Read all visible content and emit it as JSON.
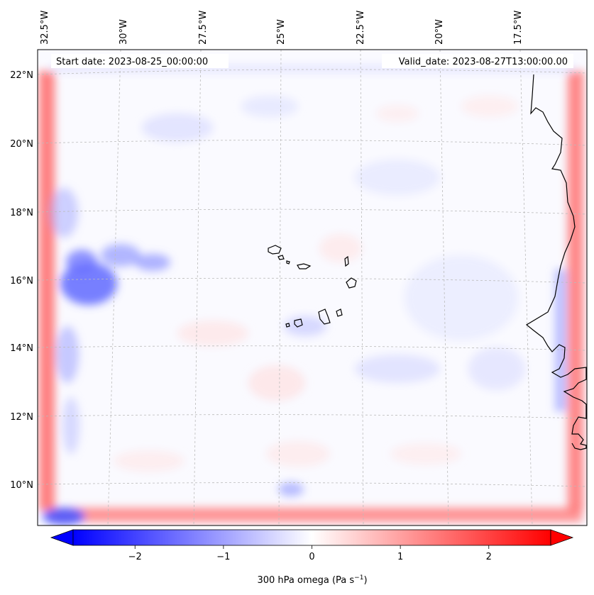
{
  "header": {
    "start_date": "Start date: 2023-08-25_00:00:00",
    "valid_date": "Valid_date: 2023-08-27T13:00:00.00"
  },
  "lon_labels": [
    "32.5°W",
    "30°W",
    "27.5°W",
    "25°W",
    "22.5°W",
    "20°W",
    "17.5°W"
  ],
  "lat_labels": [
    "22°N",
    "20°N",
    "18°N",
    "16°N",
    "14°N",
    "12°N",
    "10°N"
  ],
  "colorbar": {
    "label": "300 hPa omega (Pa s",
    "label_sup": "−1",
    "label_close": ")",
    "min": -2.7,
    "max": 2.7,
    "ticks": [
      "−2",
      "−1",
      "0",
      "1",
      "2"
    ],
    "tick_values": [
      -2,
      -1,
      0,
      1,
      2
    ],
    "color_low": "#0000ff",
    "color_mid": "#ffffff",
    "color_high": "#ff0000"
  },
  "colors": {
    "coastline": "#000000",
    "gridline": "#bbbbbb"
  }
}
